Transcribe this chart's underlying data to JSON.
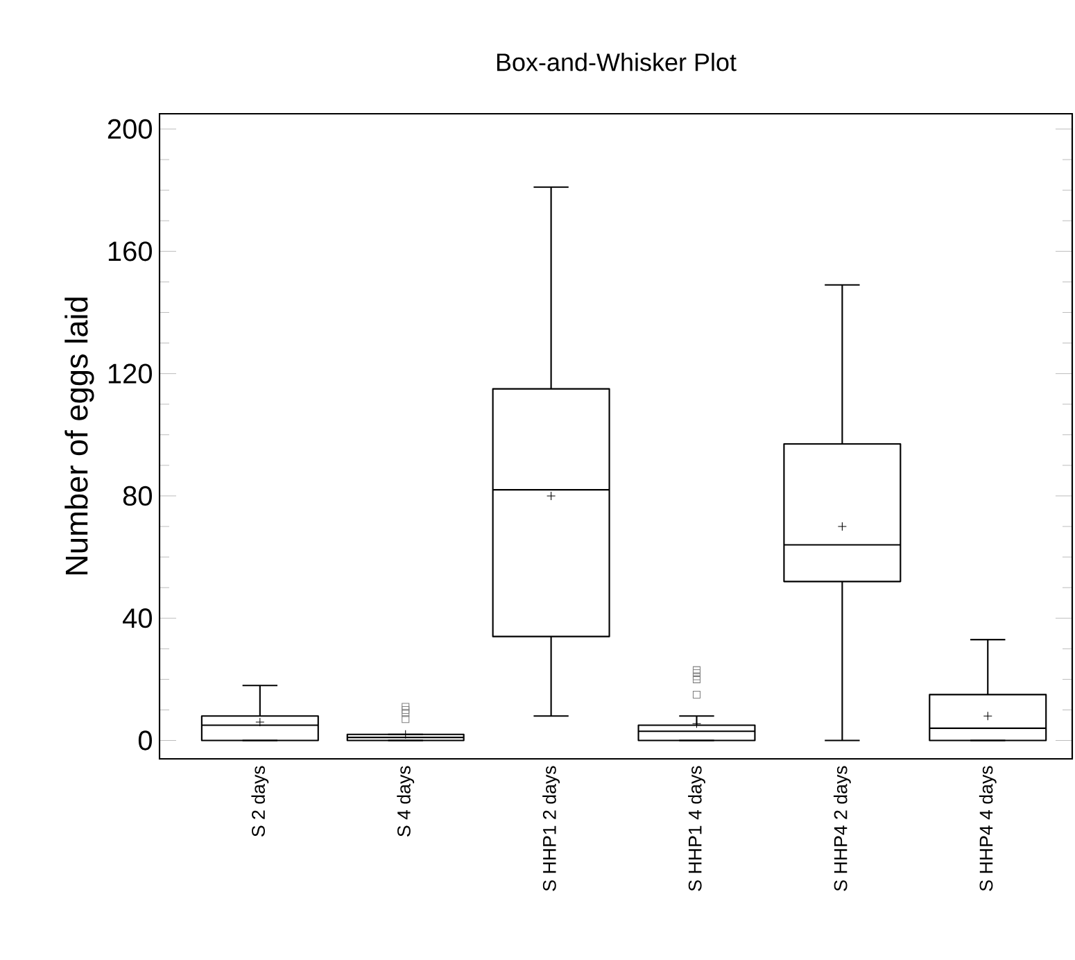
{
  "chart_data": {
    "type": "box",
    "title": "Box-and-Whisker Plot",
    "ylabel": "Number of eggs laid",
    "categories": [
      "S 2 days",
      "S 4 days",
      "S HHP1 2 days",
      "S HHP1 4 days",
      "S HHP4 2 days",
      "S HHP4 4 days"
    ],
    "boxes": [
      {
        "low": 0,
        "q1": 0,
        "median": 5,
        "q3": 8,
        "high": 18,
        "mean": 6
      },
      {
        "low": 0,
        "q1": 0,
        "median": 1,
        "q3": 2,
        "high": 2,
        "mean": 2,
        "outliers": [
          7,
          9,
          10,
          11
        ]
      },
      {
        "low": 8,
        "q1": 34,
        "median": 82,
        "q3": 115,
        "high": 181,
        "mean": 80
      },
      {
        "low": 0,
        "q1": 0,
        "median": 3,
        "q3": 5,
        "high": 8,
        "mean": 5.5,
        "outliers": [
          15,
          20,
          21,
          22,
          23
        ]
      },
      {
        "low": 0,
        "q1": 52,
        "median": 64,
        "q3": 97,
        "high": 149,
        "mean": 70
      },
      {
        "low": 0,
        "q1": 0,
        "median": 4,
        "q3": 15,
        "high": 33,
        "mean": 8
      }
    ],
    "ylim": [
      -6,
      205
    ],
    "yticks": [
      0,
      40,
      80,
      120,
      160,
      200
    ],
    "grid": false
  }
}
